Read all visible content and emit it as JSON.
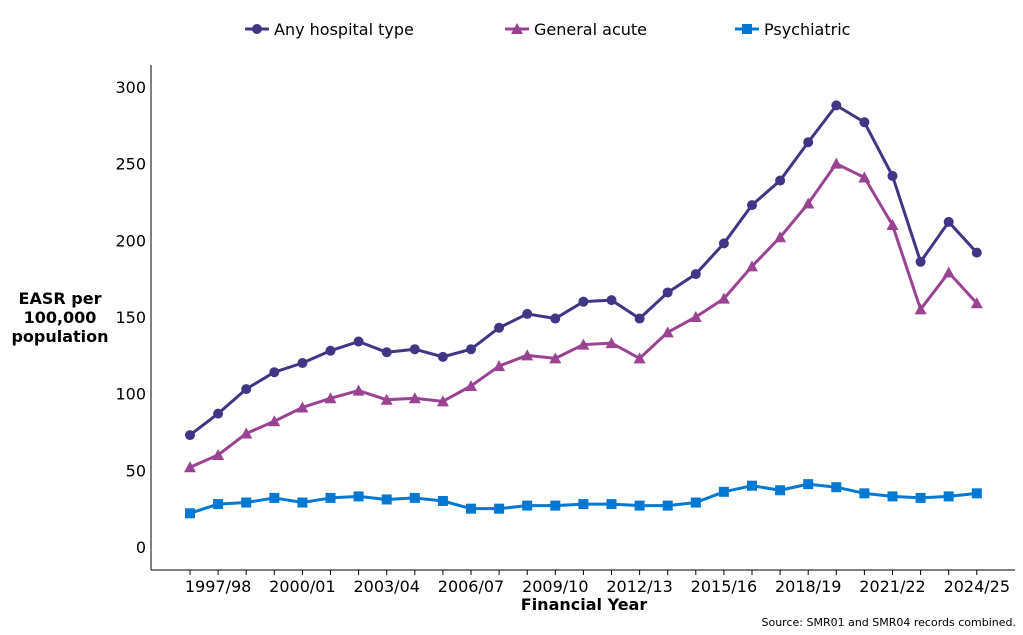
{
  "chart_data": {
    "type": "line",
    "title": "",
    "xlabel": "Financial Year",
    "ylabel": [
      "EASR per",
      "100,000",
      "population"
    ],
    "source": "Source: SMR01 and SMR04 records combined.",
    "ylim": [
      0,
      300
    ],
    "yticks": [
      0,
      50,
      100,
      150,
      200,
      250,
      300
    ],
    "legend_position": "top",
    "x": [
      "1996/97",
      "1997/98",
      "1998/99",
      "1999/00",
      "2000/01",
      "2001/02",
      "2002/03",
      "2003/04",
      "2004/05",
      "2005/06",
      "2006/07",
      "2007/08",
      "2008/09",
      "2009/10",
      "2010/11",
      "2011/12",
      "2012/13",
      "2013/14",
      "2014/15",
      "2015/16",
      "2016/17",
      "2017/18",
      "2018/19",
      "2019/20",
      "2020/21",
      "2021/22",
      "2022/23",
      "2023/24",
      "2024/25"
    ],
    "xtick_labels": [
      "1997/98",
      "2000/01",
      "2003/04",
      "2006/07",
      "2009/10",
      "2012/13",
      "2015/16",
      "2018/19",
      "2021/22",
      "2024/25"
    ],
    "series": [
      {
        "name": "Any hospital type",
        "color": "#3f3685",
        "marker": "circle",
        "values": [
          73,
          87,
          103,
          114,
          120,
          128,
          134,
          127,
          129,
          124,
          129,
          143,
          152,
          149,
          160,
          161,
          149,
          166,
          178,
          198,
          223,
          239,
          264,
          288,
          277,
          242,
          186,
          212,
          192
        ]
      },
      {
        "name": "General acute",
        "color": "#9b4393",
        "marker": "triangle",
        "values": [
          52,
          60,
          74,
          82,
          91,
          97,
          102,
          96,
          97,
          95,
          105,
          118,
          125,
          123,
          132,
          133,
          123,
          140,
          150,
          162,
          183,
          202,
          224,
          250,
          241,
          210,
          155,
          179,
          159
        ]
      },
      {
        "name": "Psychiatric",
        "color": "#0078d4",
        "marker": "square",
        "values": [
          22,
          28,
          29,
          32,
          29,
          32,
          33,
          31,
          32,
          30,
          25,
          25,
          27,
          27,
          28,
          28,
          27,
          27,
          29,
          36,
          40,
          37,
          41,
          39,
          35,
          33,
          32,
          33,
          35
        ]
      }
    ]
  }
}
